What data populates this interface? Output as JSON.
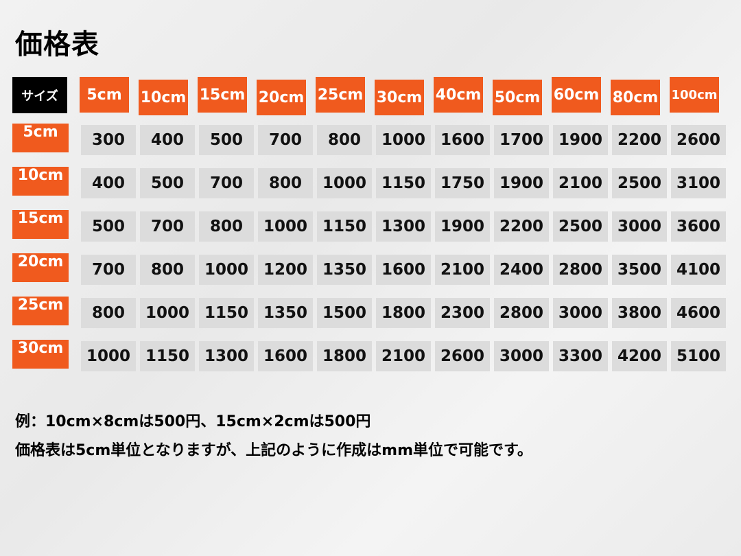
{
  "title": "価格表",
  "table": {
    "corner_label": "サイズ",
    "columns": [
      "5cm",
      "10cm",
      "15cm",
      "20cm",
      "25cm",
      "30cm",
      "40cm",
      "50cm",
      "60cm",
      "80cm",
      "100cm"
    ],
    "rows": [
      {
        "label": "5cm",
        "values": [
          "300",
          "400",
          "500",
          "700",
          "800",
          "1000",
          "1600",
          "1700",
          "1900",
          "2200",
          "2600"
        ]
      },
      {
        "label": "10cm",
        "values": [
          "400",
          "500",
          "700",
          "800",
          "1000",
          "1150",
          "1750",
          "1900",
          "2100",
          "2500",
          "3100"
        ]
      },
      {
        "label": "15cm",
        "values": [
          "500",
          "700",
          "800",
          "1000",
          "1150",
          "1300",
          "1900",
          "2200",
          "2500",
          "3000",
          "3600"
        ]
      },
      {
        "label": "20cm",
        "values": [
          "700",
          "800",
          "1000",
          "1200",
          "1350",
          "1600",
          "2100",
          "2400",
          "2800",
          "3500",
          "4100"
        ]
      },
      {
        "label": "25cm",
        "values": [
          "800",
          "1000",
          "1150",
          "1350",
          "1500",
          "1800",
          "2300",
          "2800",
          "3000",
          "3800",
          "4600"
        ]
      },
      {
        "label": "30cm",
        "values": [
          "1000",
          "1150",
          "1300",
          "1600",
          "1800",
          "2100",
          "2600",
          "3000",
          "3300",
          "4200",
          "5100"
        ]
      }
    ]
  },
  "notes": [
    "例：10cm×8cmは500円、15cm×2cmは500円",
    "価格表は5cm単位となりますが、上記のように作成はmm単位で可能です。"
  ],
  "colors": {
    "header": "#f05a1e",
    "corner": "#000000",
    "cell": "#dcdcdc"
  }
}
